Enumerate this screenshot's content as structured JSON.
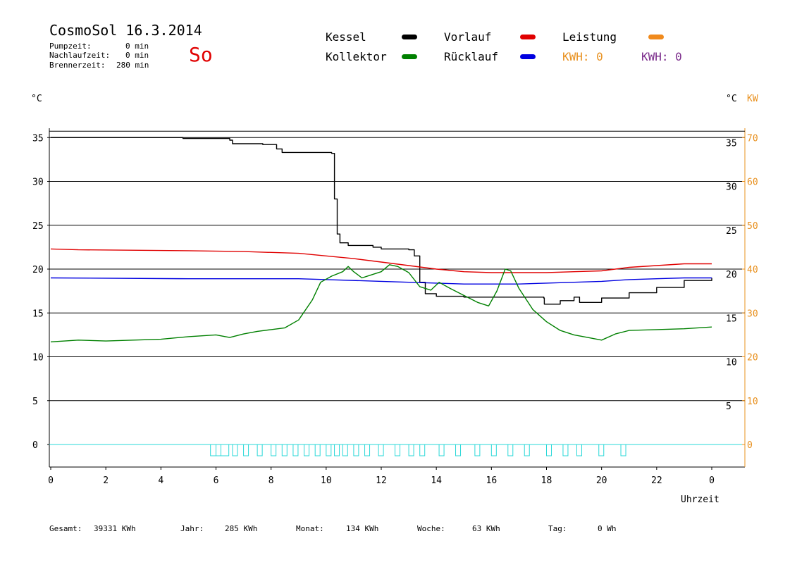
{
  "header": {
    "title": "CosmoSol 16.3.2014",
    "day": "So",
    "stats": [
      {
        "label": "Pumpzeit:",
        "value": "0 min"
      },
      {
        "label": "Nachlaufzeit:",
        "value": "0 min"
      },
      {
        "label": "Brennerzeit:",
        "value": "280 min"
      }
    ]
  },
  "legend": {
    "kessel": {
      "label": "Kessel",
      "color": "#000000"
    },
    "vorlauf": {
      "label": "Vorlauf",
      "color": "#e00000"
    },
    "leistung": {
      "label": "Leistung",
      "color": "#f08a1c"
    },
    "kollektor": {
      "label": "Kollektor",
      "color": "#008000"
    },
    "ruecklauf": {
      "label": "Rücklauf",
      "color": "#0000e0"
    },
    "kwh1": "KWH: 0",
    "kwh2": "KWH: 0"
  },
  "axes": {
    "left_unit": "°C",
    "right_unit_c": "°C",
    "right_unit_kw": "KW",
    "xlabel": "Uhrzeit"
  },
  "footer": [
    {
      "label": "Gesamt:",
      "value": "39331 KWh"
    },
    {
      "label": "Jahr:",
      "value": "285 KWh"
    },
    {
      "label": "Monat:",
      "value": "134 KWh"
    },
    {
      "label": "Woche:",
      "value": "63 KWh"
    },
    {
      "label": "Tag:",
      "value": "0 Wh"
    }
  ],
  "chart_data": {
    "type": "line",
    "title": "CosmoSol 16.3.2014",
    "xlabel": "Uhrzeit",
    "ylabel": "°C",
    "xlim": [
      0,
      24
    ],
    "ylim": [
      -2.5,
      36
    ],
    "x_ticks": [
      "0",
      "2",
      "4",
      "6",
      "8",
      "10",
      "12",
      "14",
      "16",
      "18",
      "20",
      "22",
      "0"
    ],
    "y_ticks_left": [
      "35",
      "30",
      "25",
      "20",
      "15",
      "10",
      "5",
      "0"
    ],
    "y_ticks_right_c": [
      "35",
      "30",
      "25",
      "20",
      "15",
      "10",
      "5"
    ],
    "y_ticks_right_kw": [
      "70",
      "60",
      "50",
      "40",
      "30",
      "20",
      "10",
      "0"
    ],
    "grid": true,
    "series": [
      {
        "name": "Kessel",
        "color": "#000000",
        "step": true,
        "points": [
          [
            0,
            35
          ],
          [
            1.3,
            35
          ],
          [
            4.8,
            34.9
          ],
          [
            6.5,
            34.7
          ],
          [
            6.6,
            34.3
          ],
          [
            7.7,
            34.2
          ],
          [
            8.2,
            33.7
          ],
          [
            8.4,
            33.3
          ],
          [
            9.3,
            33.3
          ],
          [
            10.2,
            33.2
          ],
          [
            10.3,
            28
          ],
          [
            10.4,
            24
          ],
          [
            10.5,
            23
          ],
          [
            10.8,
            22.7
          ],
          [
            11.7,
            22.5
          ],
          [
            12.0,
            22.3
          ],
          [
            13.0,
            22.2
          ],
          [
            13.2,
            21.5
          ],
          [
            13.4,
            18.5
          ],
          [
            13.6,
            17.2
          ],
          [
            14.0,
            16.9
          ],
          [
            15.0,
            16.8
          ],
          [
            16.0,
            16.8
          ],
          [
            17.0,
            16.8
          ],
          [
            17.9,
            16.7
          ],
          [
            17.92,
            16.0
          ],
          [
            18.5,
            16.4
          ],
          [
            19.0,
            16.8
          ],
          [
            19.2,
            16.2
          ],
          [
            20.0,
            16.7
          ],
          [
            21.0,
            17.3
          ],
          [
            22.0,
            17.9
          ],
          [
            23.0,
            18.7
          ],
          [
            24.0,
            19.0
          ]
        ]
      },
      {
        "name": "Vorlauf",
        "color": "#e00000",
        "step": false,
        "points": [
          [
            0,
            22.3
          ],
          [
            1.0,
            22.2
          ],
          [
            5.0,
            22.1
          ],
          [
            7.0,
            22.0
          ],
          [
            9.0,
            21.8
          ],
          [
            10.0,
            21.5
          ],
          [
            11.0,
            21.2
          ],
          [
            12.0,
            20.8
          ],
          [
            13.0,
            20.4
          ],
          [
            14.0,
            20.0
          ],
          [
            15.0,
            19.7
          ],
          [
            16.0,
            19.6
          ],
          [
            17.0,
            19.6
          ],
          [
            18.0,
            19.6
          ],
          [
            19.0,
            19.7
          ],
          [
            20.0,
            19.8
          ],
          [
            21.0,
            20.2
          ],
          [
            22.0,
            20.4
          ],
          [
            23.0,
            20.6
          ],
          [
            24.0,
            20.6
          ]
        ]
      },
      {
        "name": "Rücklauf",
        "color": "#0000e0",
        "step": false,
        "points": [
          [
            0,
            19.0
          ],
          [
            5.0,
            18.9
          ],
          [
            9.0,
            18.9
          ],
          [
            10.0,
            18.8
          ],
          [
            12.0,
            18.6
          ],
          [
            13.0,
            18.5
          ],
          [
            14.0,
            18.4
          ],
          [
            15.0,
            18.3
          ],
          [
            16.0,
            18.3
          ],
          [
            17.0,
            18.3
          ],
          [
            18.0,
            18.4
          ],
          [
            19.0,
            18.5
          ],
          [
            20.0,
            18.6
          ],
          [
            21.0,
            18.8
          ],
          [
            22.0,
            18.9
          ],
          [
            23.0,
            19.0
          ],
          [
            24.0,
            19.0
          ]
        ]
      },
      {
        "name": "Kollektor",
        "color": "#008000",
        "step": false,
        "points": [
          [
            0,
            11.7
          ],
          [
            1,
            11.9
          ],
          [
            2,
            11.8
          ],
          [
            3,
            11.9
          ],
          [
            4,
            12.0
          ],
          [
            5,
            12.3
          ],
          [
            6,
            12.5
          ],
          [
            6.5,
            12.2
          ],
          [
            7,
            12.6
          ],
          [
            7.5,
            12.9
          ],
          [
            8,
            13.1
          ],
          [
            8.5,
            13.3
          ],
          [
            9,
            14.2
          ],
          [
            9.5,
            16.5
          ],
          [
            9.8,
            18.5
          ],
          [
            10.2,
            19.2
          ],
          [
            10.6,
            19.7
          ],
          [
            10.8,
            20.3
          ],
          [
            11.0,
            19.7
          ],
          [
            11.3,
            19.0
          ],
          [
            11.6,
            19.3
          ],
          [
            12.0,
            19.7
          ],
          [
            12.3,
            20.5
          ],
          [
            12.6,
            20.3
          ],
          [
            13.0,
            19.6
          ],
          [
            13.4,
            18.0
          ],
          [
            13.8,
            17.6
          ],
          [
            14.1,
            18.5
          ],
          [
            14.5,
            17.8
          ],
          [
            15.0,
            17.0
          ],
          [
            15.5,
            16.2
          ],
          [
            15.9,
            15.8
          ],
          [
            16.2,
            17.5
          ],
          [
            16.5,
            20.0
          ],
          [
            16.7,
            19.8
          ],
          [
            17.0,
            17.8
          ],
          [
            17.5,
            15.4
          ],
          [
            18.0,
            14.0
          ],
          [
            18.5,
            13.0
          ],
          [
            19.0,
            12.5
          ],
          [
            19.5,
            12.2
          ],
          [
            20.0,
            11.9
          ],
          [
            20.5,
            12.6
          ],
          [
            21.0,
            13.0
          ],
          [
            22.0,
            13.1
          ],
          [
            23.0,
            13.2
          ],
          [
            24.0,
            13.4
          ]
        ]
      },
      {
        "name": "Leistung",
        "color": "#f08a1c",
        "step": false,
        "points": []
      }
    ]
  }
}
